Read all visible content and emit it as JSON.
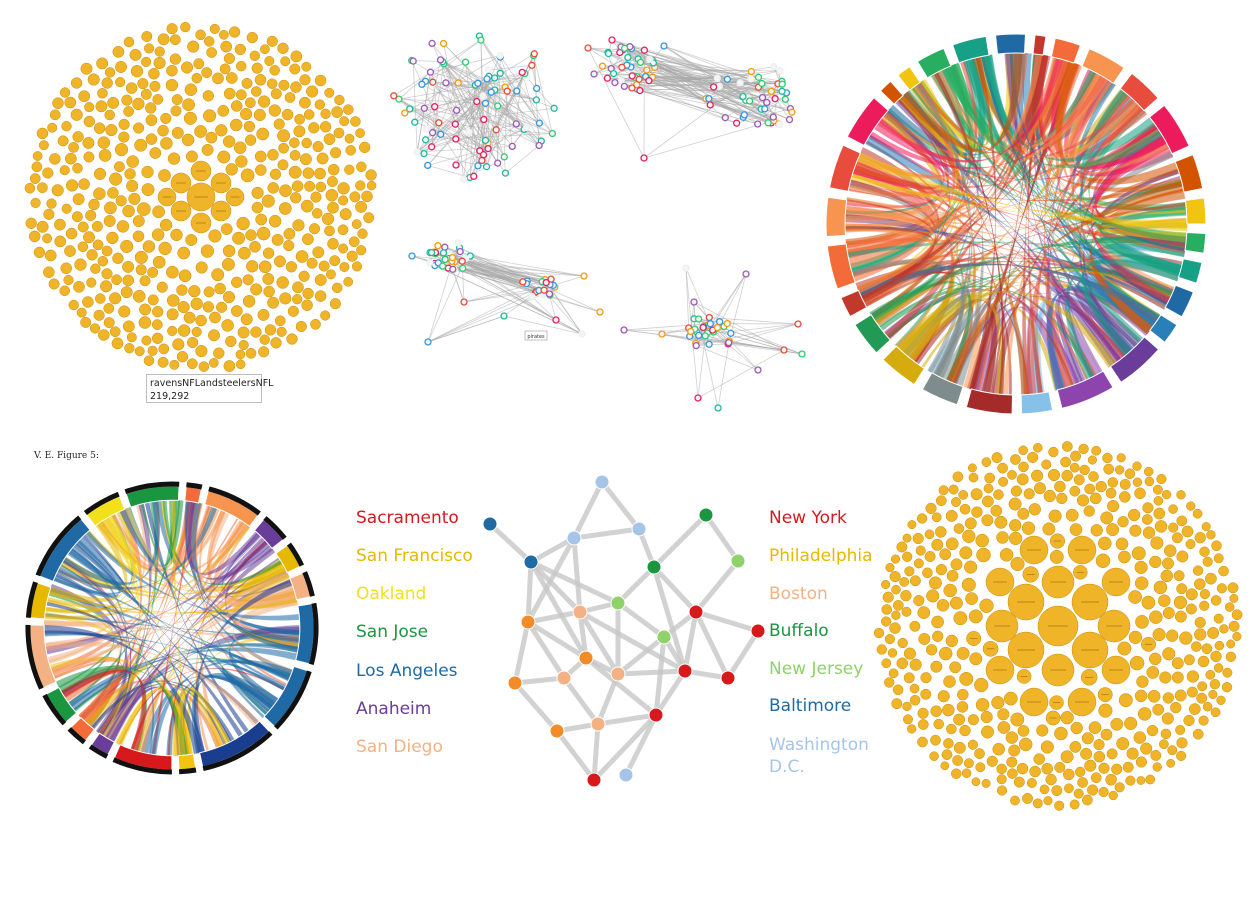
{
  "tooltip": {
    "name": "ravensNFLandsteelersNFL",
    "value": "219,292"
  },
  "caption": "V. E. Figure 5:",
  "small_graph_label": "pirates",
  "left_legend": [
    {
      "label": "Sacramento",
      "color": "#d7191c"
    },
    {
      "label": "San Francisco",
      "color": "#e6b800"
    },
    {
      "label": "Oakland",
      "color": "#f2e01a"
    },
    {
      "label": "San Jose",
      "color": "#1a9641"
    },
    {
      "label": "Los Angeles",
      "color": "#1f6aa5"
    },
    {
      "label": "Anaheim",
      "color": "#6a3d9a"
    },
    {
      "label": "San Diego",
      "color": "#f4b183"
    }
  ],
  "right_legend": [
    {
      "label": "New York",
      "color": "#d7191c"
    },
    {
      "label": "Philadelphia",
      "color": "#e6b800"
    },
    {
      "label": "Boston",
      "color": "#f4b183"
    },
    {
      "label": "Buffalo",
      "color": "#1a9641"
    },
    {
      "label": "New Jersey",
      "color": "#8fd16a"
    },
    {
      "label": "Baltimore",
      "color": "#1f6aa5"
    },
    {
      "label": "Washington D.C.",
      "color": "#a6c4e8"
    }
  ],
  "colors": {
    "bubble": "#f0b428",
    "bubble_stroke": "#c68c0e",
    "edge": "#c8c8c8",
    "orange": "#f28c28"
  }
}
